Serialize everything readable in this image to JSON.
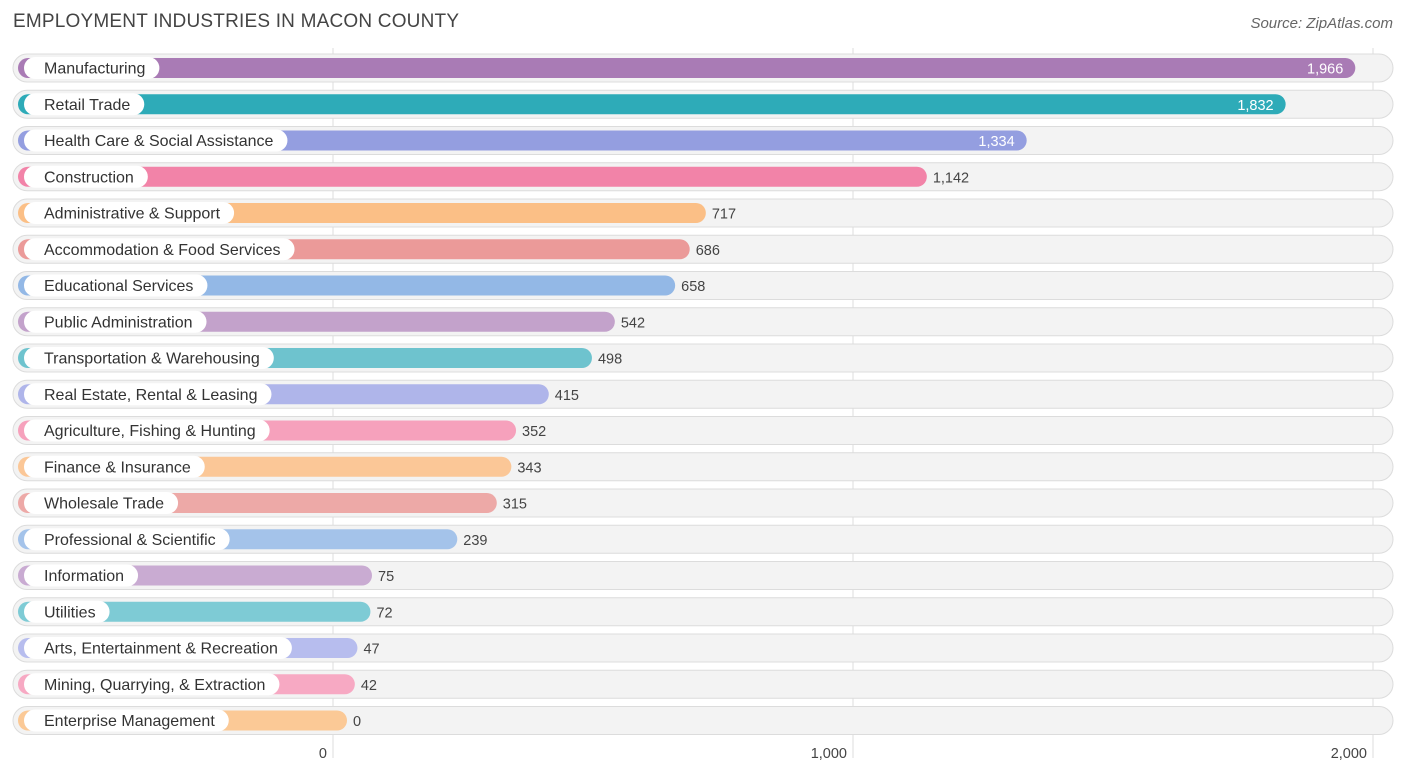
{
  "header": {
    "title": "EMPLOYMENT INDUSTRIES IN MACON COUNTY",
    "source": "Source: ZipAtlas.com"
  },
  "chart_data": {
    "type": "bar",
    "orientation": "horizontal",
    "title": "EMPLOYMENT INDUSTRIES IN MACON COUNTY",
    "xlabel": "",
    "ylabel": "",
    "xlim": [
      0,
      2000
    ],
    "grid": true,
    "ticks": [
      {
        "value": 0,
        "label": "0"
      },
      {
        "value": 1000,
        "label": "1,000"
      },
      {
        "value": 2000,
        "label": "2,000"
      }
    ],
    "categories": [
      "Manufacturing",
      "Retail Trade",
      "Health Care & Social Assistance",
      "Construction",
      "Administrative & Support",
      "Accommodation & Food Services",
      "Educational Services",
      "Public Administration",
      "Transportation & Warehousing",
      "Real Estate, Rental & Leasing",
      "Agriculture, Fishing & Hunting",
      "Finance & Insurance",
      "Wholesale Trade",
      "Professional & Scientific",
      "Information",
      "Utilities",
      "Arts, Entertainment & Recreation",
      "Mining, Quarrying, & Extraction",
      "Enterprise Management"
    ],
    "values": [
      1966,
      1832,
      1334,
      1142,
      717,
      686,
      658,
      542,
      498,
      415,
      352,
      343,
      315,
      239,
      75,
      72,
      47,
      42,
      0
    ],
    "value_labels": [
      "1,966",
      "1,832",
      "1,334",
      "1,142",
      "717",
      "686",
      "658",
      "542",
      "498",
      "415",
      "352",
      "343",
      "315",
      "239",
      "75",
      "72",
      "47",
      "42",
      "0"
    ],
    "colors": [
      "#a97bb5",
      "#2eabb8",
      "#949ee0",
      "#f283a8",
      "#fbbf86",
      "#eb9a99",
      "#93b8e6",
      "#c3a2cb",
      "#6ec3ce",
      "#afb5ea",
      "#f6a1bc",
      "#fbc797",
      "#eda9a7",
      "#a4c3ea",
      "#c9abd2",
      "#7ecbd5",
      "#b7bdee",
      "#f7a9c3",
      "#fbc996"
    ]
  }
}
